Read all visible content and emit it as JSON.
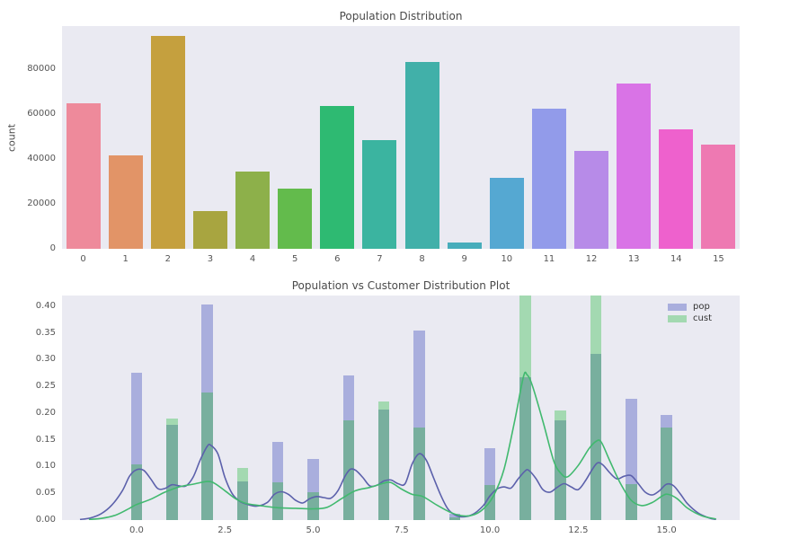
{
  "figure": {
    "background": "#ffffff",
    "axes_background": "#eaeaf2",
    "title_color": "#4a4a4a",
    "tick_color": "#555555"
  },
  "chart_data": [
    {
      "type": "bar",
      "title": "Population Distribution",
      "xlabel": "",
      "ylabel": "count",
      "categories": [
        "0",
        "1",
        "2",
        "3",
        "4",
        "5",
        "6",
        "7",
        "8",
        "9",
        "10",
        "11",
        "12",
        "13",
        "14",
        "15"
      ],
      "values": [
        64500,
        41700,
        94800,
        16800,
        34500,
        26700,
        63400,
        48200,
        83200,
        2700,
        31500,
        62200,
        43600,
        73300,
        53200,
        46200
      ],
      "bar_colors": [
        "#ee8a9b",
        "#e29467",
        "#c5a03e",
        "#a8a540",
        "#8db04a",
        "#63bb4c",
        "#2eba72",
        "#3bb4a0",
        "#41b0a9",
        "#47adbb",
        "#55a8d2",
        "#929bea",
        "#b78be8",
        "#d973e6",
        "#ee61cd",
        "#ee79b2"
      ],
      "ytick_values": [
        0,
        20000,
        40000,
        60000,
        80000
      ],
      "ytick_labels": [
        "0",
        "20000",
        "40000",
        "60000",
        "80000"
      ],
      "ylim": [
        0,
        99000
      ],
      "grid": false,
      "legend": null
    },
    {
      "type": "histogram_kde",
      "title": "Population vs Customer Distribution Plot",
      "xlabel": "",
      "ylabel": "",
      "bins": [
        0,
        1,
        2,
        3,
        4,
        5,
        6,
        7,
        8,
        9,
        10,
        11,
        12,
        13,
        14,
        15
      ],
      "xtick_values": [
        0,
        2.5,
        5,
        7.5,
        10,
        12.5,
        15
      ],
      "xtick_labels": [
        "0.0",
        "2.5",
        "5.0",
        "7.5",
        "10.0",
        "12.5",
        "15.0"
      ],
      "ytick_values": [
        0,
        0.05,
        0.1,
        0.15,
        0.2,
        0.25,
        0.3,
        0.35,
        0.4
      ],
      "ytick_labels": [
        "0.00",
        "0.05",
        "0.10",
        "0.15",
        "0.20",
        "0.25",
        "0.30",
        "0.35",
        "0.40"
      ],
      "xlim": [
        -2.11,
        17.07
      ],
      "ylim": [
        0,
        0.42
      ],
      "grid": false,
      "legend_position": "top-right",
      "overlap_fill_color": "#78af9e",
      "series": [
        {
          "name": "pop",
          "fill_color": "#a9aedd",
          "line_color": "#5c61ab",
          "hist_values": [
            0.275,
            0.178,
            0.404,
            0.072,
            0.147,
            0.114,
            0.27,
            0.206,
            0.355,
            0.011,
            0.134,
            0.268,
            0.186,
            0.311,
            0.227,
            0.197
          ],
          "kde_points": [
            [
              -1.6,
              0.001
            ],
            [
              -1.3,
              0.004
            ],
            [
              -1.0,
              0.012
            ],
            [
              -0.7,
              0.028
            ],
            [
              -0.4,
              0.055
            ],
            [
              -0.2,
              0.082
            ],
            [
              0.0,
              0.094
            ],
            [
              0.2,
              0.093
            ],
            [
              0.4,
              0.077
            ],
            [
              0.6,
              0.059
            ],
            [
              0.8,
              0.059
            ],
            [
              1.0,
              0.066
            ],
            [
              1.2,
              0.064
            ],
            [
              1.4,
              0.064
            ],
            [
              1.6,
              0.08
            ],
            [
              1.8,
              0.112
            ],
            [
              2.0,
              0.138
            ],
            [
              2.1,
              0.14
            ],
            [
              2.3,
              0.124
            ],
            [
              2.5,
              0.08
            ],
            [
              2.7,
              0.05
            ],
            [
              2.9,
              0.036
            ],
            [
              3.1,
              0.03
            ],
            [
              3.4,
              0.026
            ],
            [
              3.7,
              0.033
            ],
            [
              3.9,
              0.048
            ],
            [
              4.1,
              0.053
            ],
            [
              4.3,
              0.048
            ],
            [
              4.5,
              0.037
            ],
            [
              4.7,
              0.032
            ],
            [
              4.9,
              0.04
            ],
            [
              5.1,
              0.044
            ],
            [
              5.3,
              0.042
            ],
            [
              5.5,
              0.041
            ],
            [
              5.7,
              0.055
            ],
            [
              5.9,
              0.082
            ],
            [
              6.05,
              0.095
            ],
            [
              6.2,
              0.093
            ],
            [
              6.4,
              0.08
            ],
            [
              6.6,
              0.064
            ],
            [
              6.8,
              0.065
            ],
            [
              7.0,
              0.073
            ],
            [
              7.2,
              0.075
            ],
            [
              7.4,
              0.068
            ],
            [
              7.6,
              0.068
            ],
            [
              7.8,
              0.105
            ],
            [
              8.0,
              0.124
            ],
            [
              8.2,
              0.112
            ],
            [
              8.4,
              0.08
            ],
            [
              8.6,
              0.048
            ],
            [
              8.8,
              0.022
            ],
            [
              9.0,
              0.01
            ],
            [
              9.2,
              0.006
            ],
            [
              9.5,
              0.01
            ],
            [
              9.8,
              0.026
            ],
            [
              10.0,
              0.045
            ],
            [
              10.2,
              0.058
            ],
            [
              10.4,
              0.062
            ],
            [
              10.6,
              0.06
            ],
            [
              10.8,
              0.077
            ],
            [
              11.0,
              0.092
            ],
            [
              11.1,
              0.093
            ],
            [
              11.3,
              0.078
            ],
            [
              11.5,
              0.057
            ],
            [
              11.7,
              0.052
            ],
            [
              11.9,
              0.061
            ],
            [
              12.1,
              0.068
            ],
            [
              12.3,
              0.062
            ],
            [
              12.5,
              0.057
            ],
            [
              12.7,
              0.073
            ],
            [
              12.9,
              0.095
            ],
            [
              13.05,
              0.107
            ],
            [
              13.2,
              0.103
            ],
            [
              13.4,
              0.088
            ],
            [
              13.6,
              0.077
            ],
            [
              13.8,
              0.082
            ],
            [
              14.0,
              0.083
            ],
            [
              14.2,
              0.068
            ],
            [
              14.4,
              0.052
            ],
            [
              14.6,
              0.047
            ],
            [
              14.8,
              0.055
            ],
            [
              15.0,
              0.067
            ],
            [
              15.2,
              0.064
            ],
            [
              15.4,
              0.048
            ],
            [
              15.6,
              0.03
            ],
            [
              15.9,
              0.013
            ],
            [
              16.2,
              0.004
            ],
            [
              16.4,
              0.001
            ]
          ]
        },
        {
          "name": "cust",
          "fill_color": "#a3d9b1",
          "line_color": "#41b96f",
          "hist_values": [
            0.105,
            0.19,
            0.238,
            0.098,
            0.071,
            0.052,
            0.187,
            0.222,
            0.173,
            0.005,
            0.065,
            0.42,
            0.205,
            0.42,
            0.067,
            0.173
          ],
          "kde_points": [
            [
              -1.35,
              0.001
            ],
            [
              -1.0,
              0.003
            ],
            [
              -0.6,
              0.009
            ],
            [
              -0.2,
              0.022
            ],
            [
              0.0,
              0.029
            ],
            [
              0.4,
              0.039
            ],
            [
              0.8,
              0.052
            ],
            [
              1.2,
              0.062
            ],
            [
              1.6,
              0.067
            ],
            [
              2.0,
              0.072
            ],
            [
              2.2,
              0.069
            ],
            [
              2.5,
              0.055
            ],
            [
              2.8,
              0.04
            ],
            [
              3.1,
              0.031
            ],
            [
              3.5,
              0.027
            ],
            [
              4.0,
              0.023
            ],
            [
              4.5,
              0.022
            ],
            [
              5.0,
              0.021
            ],
            [
              5.4,
              0.024
            ],
            [
              5.8,
              0.04
            ],
            [
              6.2,
              0.055
            ],
            [
              6.6,
              0.061
            ],
            [
              7.0,
              0.069
            ],
            [
              7.2,
              0.07
            ],
            [
              7.5,
              0.058
            ],
            [
              7.8,
              0.048
            ],
            [
              8.1,
              0.044
            ],
            [
              8.5,
              0.028
            ],
            [
              8.9,
              0.014
            ],
            [
              9.2,
              0.008
            ],
            [
              9.5,
              0.009
            ],
            [
              9.8,
              0.02
            ],
            [
              10.1,
              0.045
            ],
            [
              10.4,
              0.095
            ],
            [
              10.7,
              0.185
            ],
            [
              10.95,
              0.268
            ],
            [
              11.05,
              0.272
            ],
            [
              11.2,
              0.252
            ],
            [
              11.5,
              0.185
            ],
            [
              11.8,
              0.112
            ],
            [
              12.0,
              0.088
            ],
            [
              12.2,
              0.081
            ],
            [
              12.5,
              0.102
            ],
            [
              12.8,
              0.133
            ],
            [
              13.0,
              0.147
            ],
            [
              13.15,
              0.146
            ],
            [
              13.4,
              0.11
            ],
            [
              13.7,
              0.068
            ],
            [
              14.0,
              0.037
            ],
            [
              14.3,
              0.027
            ],
            [
              14.6,
              0.033
            ],
            [
              14.9,
              0.046
            ],
            [
              15.05,
              0.048
            ],
            [
              15.3,
              0.04
            ],
            [
              15.6,
              0.022
            ],
            [
              16.0,
              0.008
            ],
            [
              16.4,
              0.002
            ]
          ]
        }
      ]
    }
  ]
}
